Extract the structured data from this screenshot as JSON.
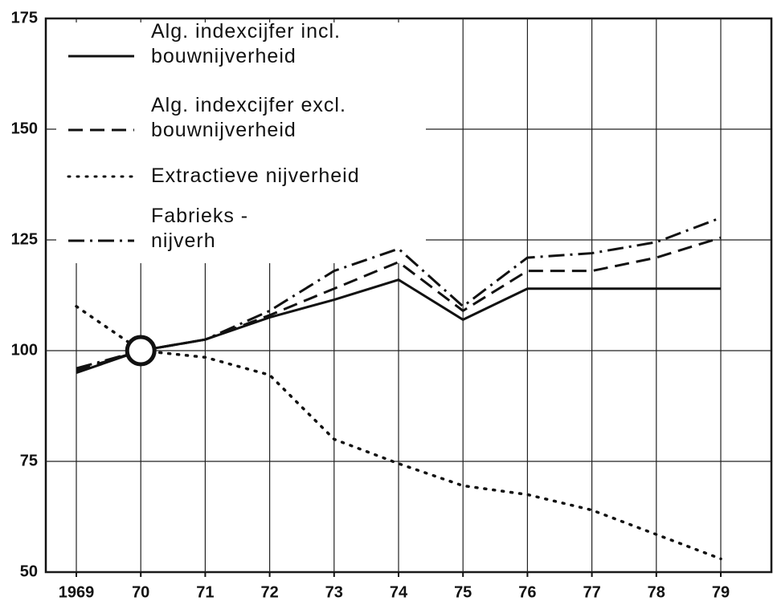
{
  "chart_data": {
    "type": "line",
    "categories": [
      "1969",
      "70",
      "71",
      "72",
      "73",
      "74",
      "75",
      "76",
      "77",
      "78",
      "79"
    ],
    "series": [
      {
        "name": "Alg. indexcijfer incl.\nbouwnijverheid",
        "color": "#111111",
        "dash": "solid",
        "values": [
          95,
          100,
          102.5,
          107.5,
          111.5,
          116,
          107,
          114,
          114,
          114,
          114
        ]
      },
      {
        "name": "Alg. indexcijfer excl.\nbouwnijverheid",
        "color": "#111111",
        "dash": "dashed",
        "values": [
          95.5,
          100,
          102.5,
          108,
          114,
          120,
          109,
          118,
          118,
          121,
          125.5
        ]
      },
      {
        "name": "Extractieve nijverheid",
        "color": "#111111",
        "dash": "dotted",
        "values": [
          110,
          100,
          98.5,
          94.5,
          80,
          74.5,
          69.5,
          67.5,
          64,
          58.5,
          53
        ]
      },
      {
        "name": "Fabrieks -\nnijverh",
        "color": "#111111",
        "dash": "dashdot",
        "values": [
          96,
          100,
          102.5,
          109,
          118,
          123,
          110,
          121,
          122,
          124.5,
          130
        ]
      }
    ],
    "ylim": [
      50,
      175
    ],
    "yticks": [
      50,
      75,
      100,
      125,
      150,
      175
    ],
    "grid": true
  }
}
